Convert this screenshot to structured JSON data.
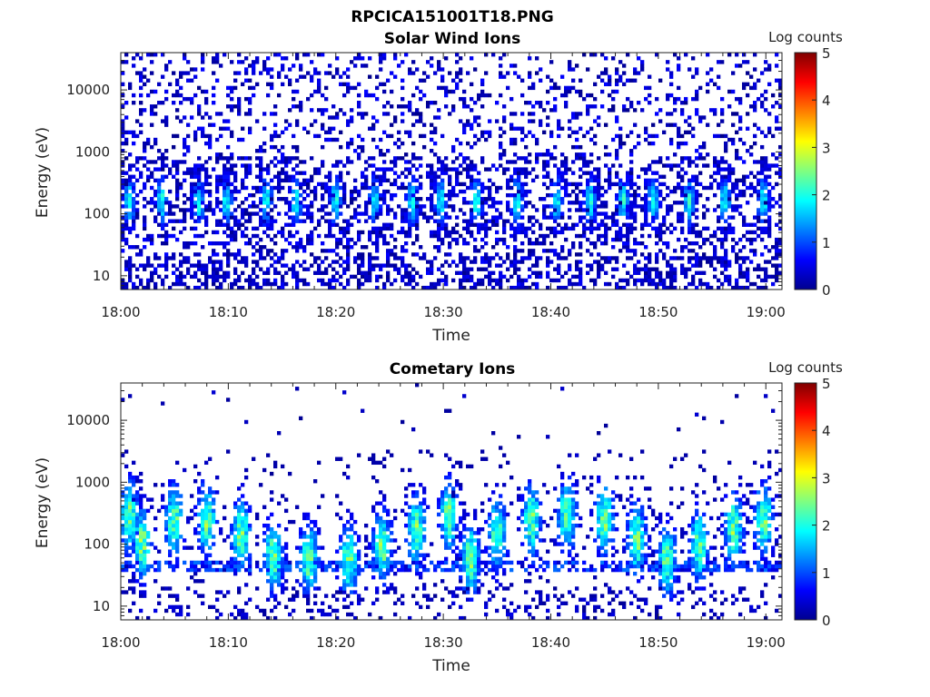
{
  "figure_title": "RPCICA151001T18.PNG",
  "chart_data": [
    {
      "type": "heatmap",
      "title": "Solar Wind Ions",
      "xlabel": "Time",
      "ylabel": "Energy (eV)",
      "x_ticks": [
        "18:00",
        "18:10",
        "18:20",
        "18:30",
        "18:40",
        "18:50",
        "19:00"
      ],
      "x_range_minutes": [
        0,
        61.5
      ],
      "y_scale": "log",
      "y_range": [
        6,
        40000
      ],
      "y_ticks": [
        10,
        100,
        1000,
        10000
      ],
      "y_tick_labels": [
        "10",
        "100",
        "1000",
        "10000"
      ],
      "colorbar": {
        "label": "Log counts",
        "range": [
          0,
          5
        ],
        "ticks": [
          "0",
          "1",
          "2",
          "3",
          "4",
          "5"
        ],
        "colormap": "jet"
      },
      "grid": false,
      "pattern": {
        "description_values": "sparse background counts 0-1 log across energies; periodic bursts ~2 log counts at 100-500 eV",
        "burst_peak_log_counts": 2.0,
        "burst_energy_range": [
          40,
          800
        ]
      }
    },
    {
      "type": "heatmap",
      "title": "Cometary Ions",
      "xlabel": "Time",
      "ylabel": "Energy (eV)",
      "x_ticks": [
        "18:00",
        "18:10",
        "18:20",
        "18:30",
        "18:40",
        "18:50",
        "19:00"
      ],
      "x_range_minutes": [
        0,
        61.5
      ],
      "y_scale": "log",
      "y_range": [
        6,
        40000
      ],
      "y_ticks": [
        10,
        100,
        1000,
        10000
      ],
      "y_tick_labels": [
        "10",
        "100",
        "1000",
        "10000"
      ],
      "colorbar": {
        "label": "Log counts",
        "range": [
          0,
          5
        ],
        "ticks": [
          "0",
          "1",
          "2",
          "3",
          "4",
          "5"
        ],
        "colormap": "jet"
      },
      "grid": false,
      "pattern": {
        "burst_peak_log_counts": 2.8,
        "burst_energy_range": [
          20,
          2000
        ]
      },
      "bursts_minutes": [
        0.8,
        2.0,
        5.0,
        8.0,
        11.2,
        14.2,
        17.5,
        21.2,
        24.3,
        27.5,
        30.5,
        32.5,
        35.0,
        38.2,
        41.5,
        45.0,
        48.0,
        50.8,
        53.8,
        57.0,
        59.8
      ]
    }
  ]
}
